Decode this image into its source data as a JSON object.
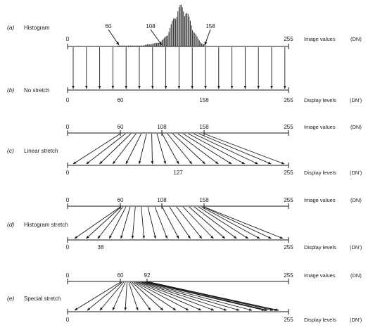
{
  "panels": [
    {
      "letter": "(a)",
      "name": "Histogram",
      "top": {
        "label": "Image values",
        "unit": "(DN)",
        "ticks": [
          "0",
          "60",
          "108",
          "158",
          "255"
        ]
      }
    },
    {
      "letter": "(b)",
      "name": "No stretch",
      "bottom": {
        "label": "Display levels",
        "unit": "(DN')",
        "ticks": [
          "0",
          "60",
          "158",
          "255"
        ]
      }
    },
    {
      "letter": "(c)",
      "name": "Linear stretch",
      "top": {
        "label": "Image values",
        "unit": "(DN)",
        "ticks": [
          "0",
          "60",
          "108",
          "158",
          "255"
        ]
      },
      "bottom": {
        "label": "Display levels",
        "unit": "(DN')",
        "ticks": [
          "0",
          "127",
          "255"
        ]
      }
    },
    {
      "letter": "(d)",
      "name": "Histogram stretch",
      "top": {
        "label": "Image values",
        "unit": "(DN)",
        "ticks": [
          "0",
          "60",
          "108",
          "158",
          "255"
        ]
      },
      "bottom": {
        "label": "Display levels",
        "unit": "(DN')",
        "ticks": [
          "0",
          "38",
          "255"
        ]
      }
    },
    {
      "letter": "(e)",
      "name": "Special stretch",
      "top": {
        "label": "Image values",
        "unit": "(DN)",
        "ticks": [
          "0",
          "60",
          "92",
          "255"
        ]
      },
      "bottom": {
        "label": "Display levels",
        "unit": "(DN')",
        "ticks": [
          "0",
          "255"
        ]
      }
    }
  ]
}
